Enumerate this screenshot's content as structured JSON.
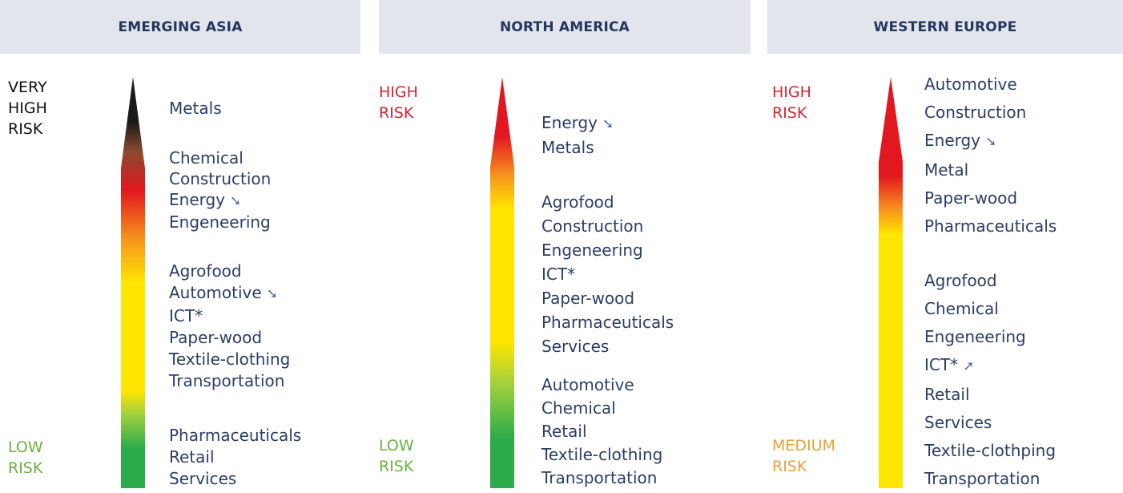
{
  "colors": {
    "header_bg": "#e3e5ec",
    "header_text": "#243760",
    "item_text": "#2b3d66",
    "very_high": "#111111",
    "high": "#d9232e",
    "medium": "#e8a23a",
    "low": "#6ab23e"
  },
  "panels": [
    {
      "title": "EMERGING ASIA",
      "top_label": [
        "VERY",
        "HIGH",
        "RISK"
      ],
      "bottom_label": [
        "LOW",
        "RISK"
      ],
      "groups": [
        [
          {
            "text": "Metals"
          }
        ],
        [
          {
            "text": "Chemical"
          },
          {
            "text": "Construction"
          },
          {
            "text": "Energy",
            "trend": "down"
          },
          {
            "text": "Engeneering"
          }
        ],
        [
          {
            "text": "Agrofood"
          },
          {
            "text": "Automotive",
            "trend": "down"
          },
          {
            "text": "ICT*"
          },
          {
            "text": "Paper-wood"
          },
          {
            "text": "Textile-clothing"
          },
          {
            "text": "Transportation"
          }
        ],
        [
          {
            "text": "Pharmaceuticals"
          },
          {
            "text": "Retail"
          },
          {
            "text": "Services"
          }
        ]
      ]
    },
    {
      "title": "NORTH AMERICA",
      "top_label": [
        "HIGH",
        "RISK"
      ],
      "bottom_label": [
        "LOW",
        "RISK"
      ],
      "groups": [
        [
          {
            "text": "Energy",
            "trend": "down"
          },
          {
            "text": "Metals"
          }
        ],
        [
          {
            "text": "Agrofood"
          },
          {
            "text": "Construction"
          },
          {
            "text": "Engeneering"
          },
          {
            "text": "ICT*"
          },
          {
            "text": "Paper-wood"
          },
          {
            "text": "Pharmaceuticals"
          },
          {
            "text": "Services"
          }
        ],
        [
          {
            "text": "Automotive"
          },
          {
            "text": "Chemical"
          },
          {
            "text": "Retail"
          },
          {
            "text": "Textile-clothing"
          },
          {
            "text": "Transportation"
          }
        ]
      ]
    },
    {
      "title": "WESTERN EUROPE",
      "top_label": [
        "HIGH",
        "RISK"
      ],
      "bottom_label": [
        "MEDIUM",
        "RISK"
      ],
      "groups": [
        [
          {
            "text": "Automotive"
          },
          {
            "text": "Construction"
          },
          {
            "text": "Energy",
            "trend": "down"
          },
          {
            "text": "Metal"
          },
          {
            "text": "Paper-wood"
          },
          {
            "text": "Pharmaceuticals"
          }
        ],
        [
          {
            "text": "Agrofood"
          },
          {
            "text": "Chemical"
          },
          {
            "text": "Engeneering"
          },
          {
            "text": "ICT*",
            "trend": "up"
          },
          {
            "text": "Retail"
          },
          {
            "text": "Services"
          },
          {
            "text": "Textile-clothping"
          },
          {
            "text": "Transportation"
          }
        ]
      ]
    }
  ]
}
